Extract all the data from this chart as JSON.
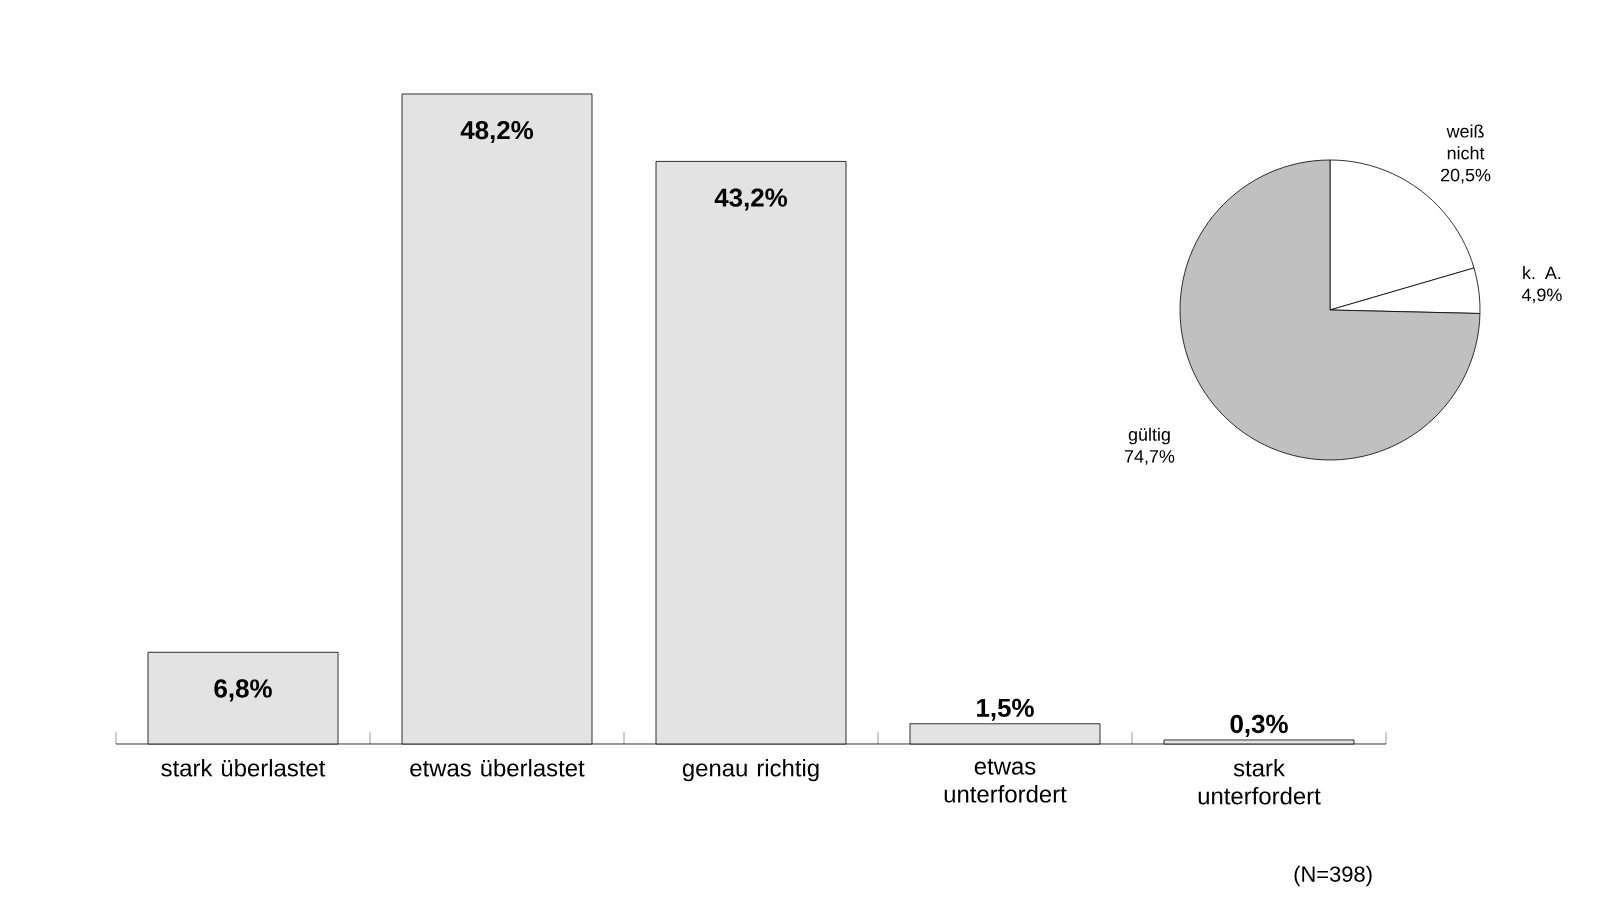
{
  "chart_data": [
    {
      "type": "bar",
      "categories": [
        "stark überlastet",
        "etwas überlastet",
        "genau richtig",
        "etwas unterfordert",
        "stark unterfordert"
      ],
      "values": [
        6.8,
        48.2,
        43.2,
        1.5,
        0.3
      ],
      "color": "#e3e3e3",
      "value_labels": [
        "6,8%",
        "48,2%",
        "43,2%",
        "1,5%",
        "0,3%"
      ],
      "annotations": [
        "(N=398)"
      ]
    },
    {
      "type": "pie",
      "categories": [
        "weiß nicht",
        "k. A.",
        "gültig"
      ],
      "values": [
        20.5,
        4.9,
        74.7
      ],
      "colors": [
        "#ffffff",
        "#ffffff",
        "#c0c0c0"
      ],
      "value_labels": [
        "20,5%",
        "4,9%",
        "74,7%"
      ]
    }
  ]
}
